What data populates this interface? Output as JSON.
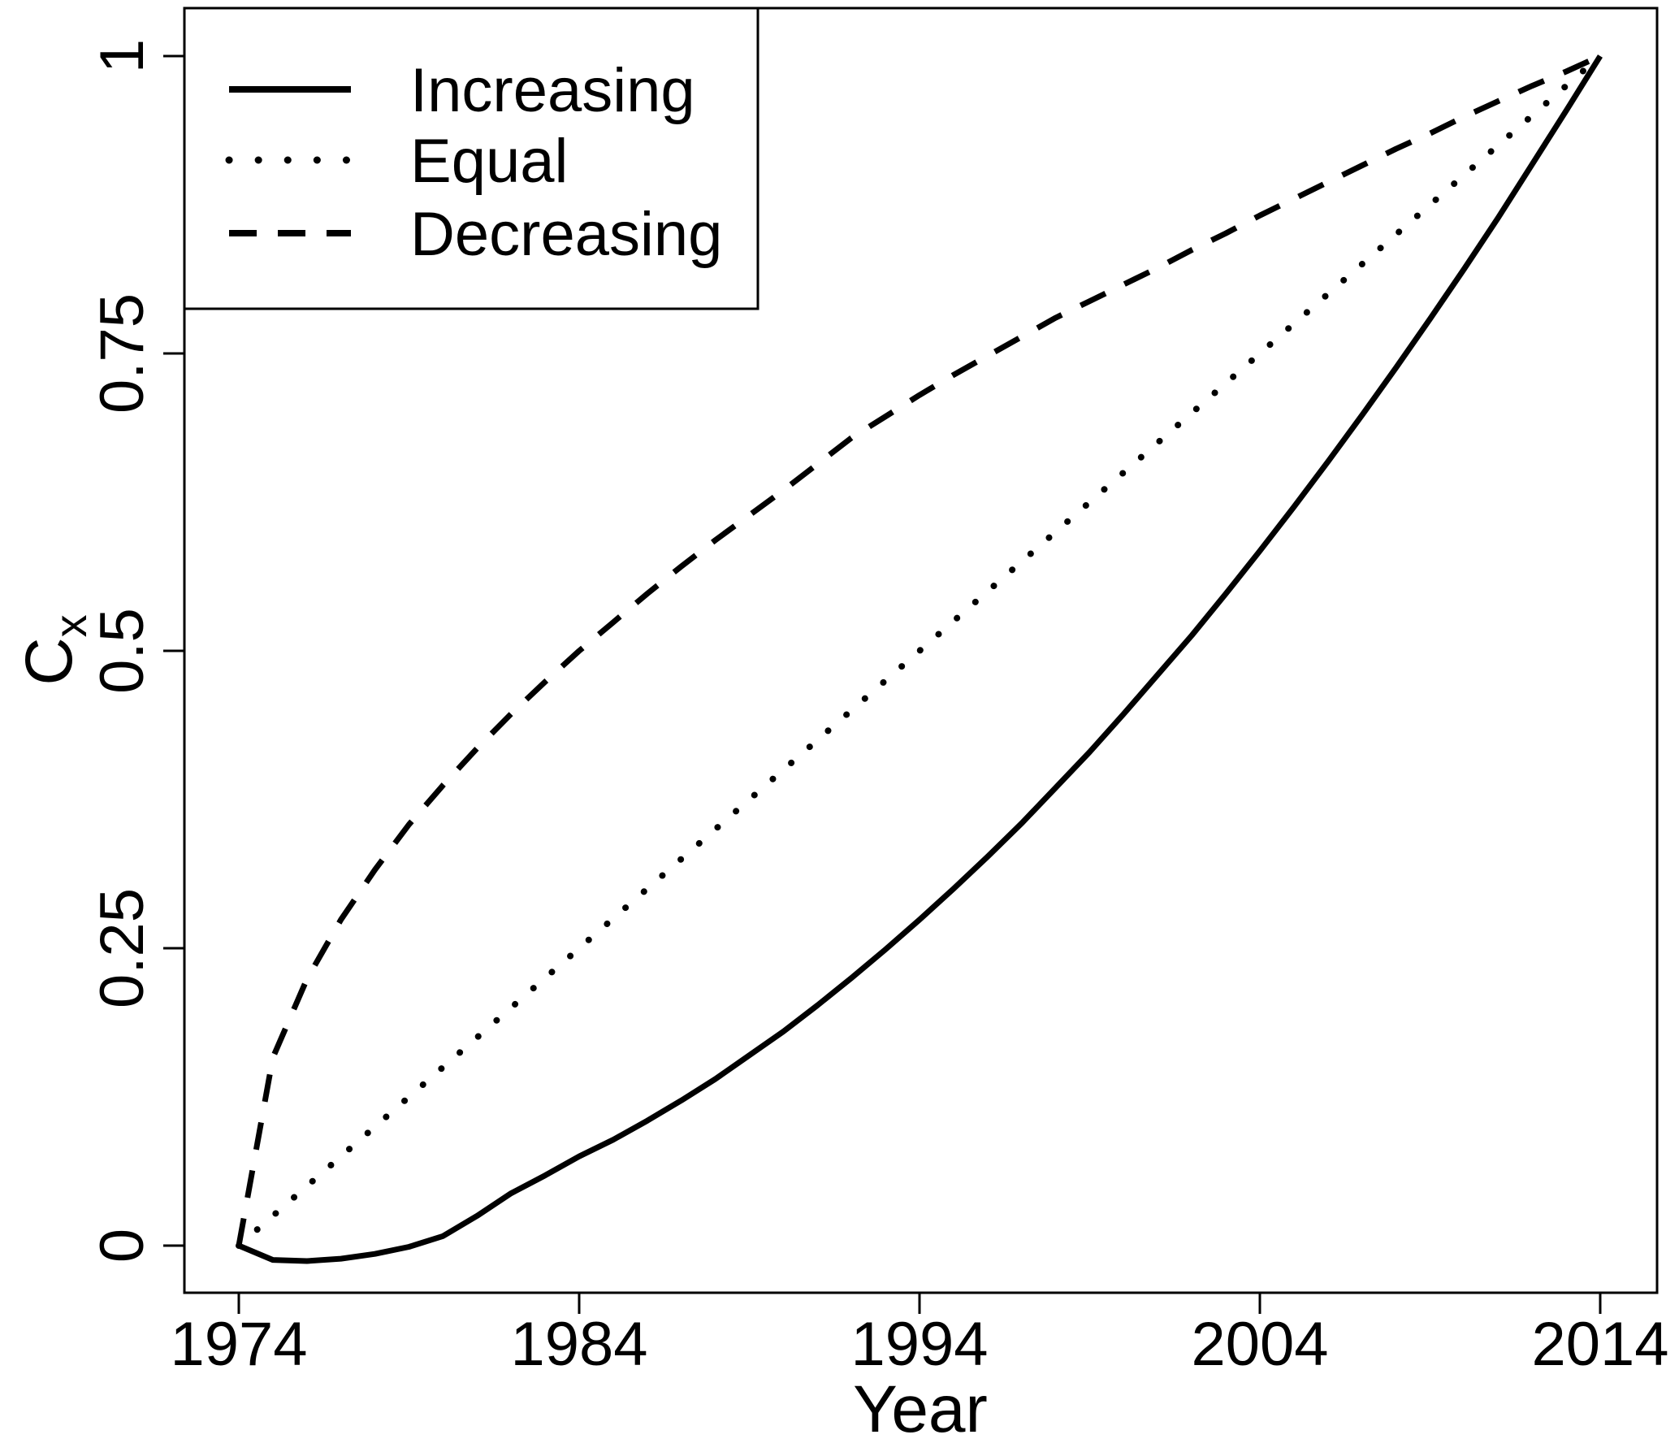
{
  "figure": {
    "background_color": "#ffffff",
    "line_color": "#000000"
  },
  "axes": {
    "x_title": "Year",
    "y_title_main": "C",
    "y_title_sub": "x"
  },
  "legend": {
    "position": "top-left",
    "items": [
      {
        "label": "Increasing",
        "line_style": "solid"
      },
      {
        "label": "Equal",
        "line_style": "dotted"
      },
      {
        "label": "Decreasing",
        "line_style": "dashed"
      }
    ]
  },
  "chart_data": {
    "type": "line",
    "title": "",
    "xlabel": "Year",
    "ylabel": "Cx",
    "xlim": [
      1972.4,
      2015.7
    ],
    "ylim": [
      -0.04,
      1.04
    ],
    "grid": false,
    "legend_position": "top-left",
    "x_ticks": [
      {
        "value": 1974,
        "label": "1974"
      },
      {
        "value": 1984,
        "label": "1984"
      },
      {
        "value": 1994,
        "label": "1994"
      },
      {
        "value": 2004,
        "label": "2004"
      },
      {
        "value": 2014,
        "label": "2014"
      }
    ],
    "y_ticks": [
      {
        "value": 0,
        "label": "0"
      },
      {
        "value": 0.25,
        "label": "0.25"
      },
      {
        "value": 0.5,
        "label": "0.5"
      },
      {
        "value": 0.75,
        "label": "0.75"
      },
      {
        "value": 1,
        "label": "1"
      }
    ],
    "x": [
      1974,
      1975,
      1976,
      1977,
      1978,
      1979,
      1980,
      1981,
      1982,
      1983,
      1984,
      1985,
      1986,
      1987,
      1988,
      1989,
      1990,
      1991,
      1992,
      1993,
      1994,
      1995,
      1996,
      1997,
      1998,
      1999,
      2000,
      2001,
      2002,
      2003,
      2004,
      2005,
      2006,
      2007,
      2008,
      2009,
      2010,
      2011,
      2012,
      2013,
      2014
    ],
    "series": [
      {
        "name": "Increasing",
        "style": "solid",
        "values": [
          0,
          -0.012,
          -0.013,
          -0.011,
          -0.007,
          -0.001,
          0.008,
          0.025,
          0.044,
          0.059,
          0.075,
          0.089,
          0.105,
          0.122,
          0.14,
          0.16,
          0.18,
          0.202,
          0.225,
          0.249,
          0.274,
          0.3,
          0.327,
          0.355,
          0.385,
          0.415,
          0.447,
          0.48,
          0.513,
          0.548,
          0.584,
          0.621,
          0.659,
          0.698,
          0.738,
          0.779,
          0.821,
          0.864,
          0.909,
          0.954,
          1
        ]
      },
      {
        "name": "Equal",
        "style": "dotted",
        "values": [
          0,
          0.025,
          0.05,
          0.075,
          0.1,
          0.125,
          0.15,
          0.175,
          0.2,
          0.225,
          0.25,
          0.275,
          0.3,
          0.325,
          0.35,
          0.375,
          0.4,
          0.425,
          0.45,
          0.475,
          0.5,
          0.525,
          0.55,
          0.575,
          0.6,
          0.625,
          0.65,
          0.675,
          0.7,
          0.725,
          0.75,
          0.775,
          0.8,
          0.825,
          0.85,
          0.875,
          0.9,
          0.925,
          0.95,
          0.975,
          1
        ]
      },
      {
        "name": "Decreasing",
        "style": "dashed",
        "values": [
          0,
          0.158,
          0.224,
          0.274,
          0.316,
          0.354,
          0.387,
          0.418,
          0.447,
          0.474,
          0.5,
          0.524,
          0.548,
          0.571,
          0.593,
          0.614,
          0.635,
          0.657,
          0.679,
          0.697,
          0.715,
          0.732,
          0.748,
          0.764,
          0.78,
          0.794,
          0.808,
          0.822,
          0.837,
          0.851,
          0.866,
          0.88,
          0.894,
          0.908,
          0.922,
          0.935,
          0.949,
          0.962,
          0.975,
          0.987,
          1
        ]
      }
    ]
  }
}
